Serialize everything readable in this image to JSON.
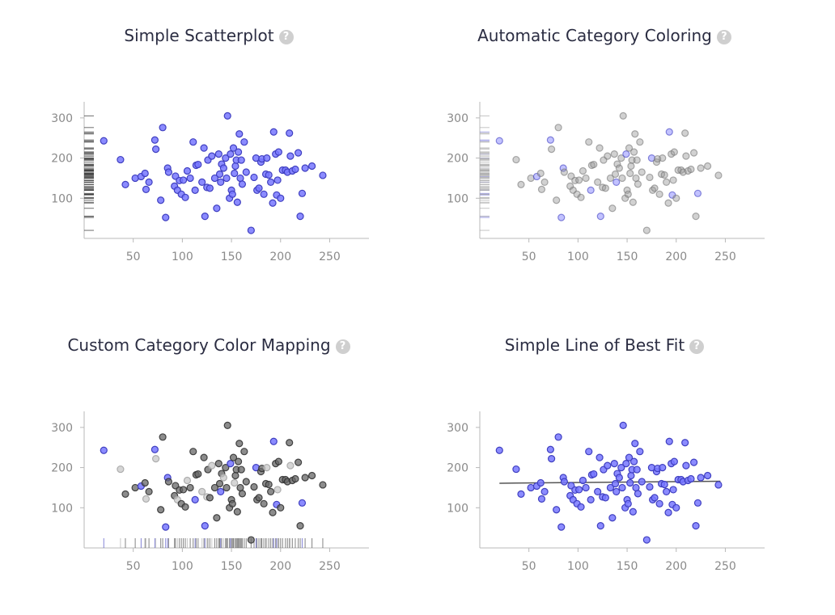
{
  "colors": {
    "blue": "#7777ff",
    "blue_stroke": "#3f3fc0",
    "gray": "#999999",
    "dark": "#666666",
    "black": "#333333",
    "light": "#cccccc",
    "axis": "#b8b8b8",
    "fit_line": "#555555"
  },
  "help_glyph": "?",
  "chart_data": [
    {
      "type": "scatter",
      "title": "Simple Scatterplot",
      "xticks": [
        "50",
        "100",
        "150",
        "200",
        "250"
      ],
      "yticks": [
        "100",
        "200",
        "300"
      ],
      "xlim": [
        0,
        290
      ],
      "ylim": [
        0,
        340
      ],
      "rug": "y",
      "coloring": "single",
      "best_fit": false
    },
    {
      "type": "scatter",
      "title": "Automatic Category Coloring",
      "xticks": [
        "50",
        "100",
        "150",
        "200",
        "250"
      ],
      "yticks": [
        "100",
        "200",
        "300"
      ],
      "xlim": [
        0,
        290
      ],
      "ylim": [
        0,
        340
      ],
      "rug": "y",
      "coloring": "auto",
      "best_fit": false
    },
    {
      "type": "scatter",
      "title": "Custom Category Color Mapping",
      "xticks": [
        "50",
        "100",
        "150",
        "200",
        "250"
      ],
      "yticks": [
        "100",
        "200",
        "300"
      ],
      "xlim": [
        0,
        290
      ],
      "ylim": [
        0,
        340
      ],
      "rug": "x",
      "coloring": "custom",
      "best_fit": false
    },
    {
      "type": "scatter",
      "title": "Simple Line of Best Fit",
      "xticks": [
        "50",
        "100",
        "150",
        "200",
        "250"
      ],
      "yticks": [
        "100",
        "200",
        "300"
      ],
      "xlim": [
        0,
        290
      ],
      "ylim": [
        0,
        340
      ],
      "rug": "none",
      "coloring": "single",
      "best_fit": true,
      "fit_line": {
        "x": [
          20,
          245
        ],
        "y": [
          161,
          166
        ]
      }
    }
  ],
  "points": [
    [
      20,
      243,
      0
    ],
    [
      37,
      196,
      2
    ],
    [
      42,
      134,
      1
    ],
    [
      52,
      150,
      1
    ],
    [
      58,
      154,
      0
    ],
    [
      62,
      162,
      1
    ],
    [
      63,
      122,
      2
    ],
    [
      66,
      140,
      1
    ],
    [
      72,
      245,
      0
    ],
    [
      73,
      222,
      2
    ],
    [
      78,
      95,
      1
    ],
    [
      80,
      276,
      1
    ],
    [
      83,
      52,
      0
    ],
    [
      85,
      175,
      0
    ],
    [
      86,
      165,
      1
    ],
    [
      92,
      130,
      1
    ],
    [
      93,
      155,
      1
    ],
    [
      95,
      120,
      2
    ],
    [
      97,
      144,
      1
    ],
    [
      99,
      110,
      1
    ],
    [
      101,
      145,
      1
    ],
    [
      103,
      102,
      1
    ],
    [
      105,
      168,
      2
    ],
    [
      108,
      150,
      1
    ],
    [
      111,
      240,
      1
    ],
    [
      113,
      120,
      0
    ],
    [
      114,
      182,
      1
    ],
    [
      116,
      184,
      1
    ],
    [
      120,
      140,
      2
    ],
    [
      122,
      225,
      1
    ],
    [
      123,
      55,
      0
    ],
    [
      125,
      127,
      2
    ],
    [
      126,
      195,
      1
    ],
    [
      128,
      125,
      1
    ],
    [
      130,
      205,
      2
    ],
    [
      133,
      150,
      1
    ],
    [
      135,
      75,
      1
    ],
    [
      137,
      210,
      1
    ],
    [
      138,
      160,
      1
    ],
    [
      139,
      140,
      0
    ],
    [
      140,
      185,
      1
    ],
    [
      142,
      175,
      2
    ],
    [
      144,
      200,
      1
    ],
    [
      145,
      150,
      1
    ],
    [
      146,
      305,
      1
    ],
    [
      148,
      100,
      1
    ],
    [
      149,
      210,
      0
    ],
    [
      150,
      120,
      1
    ],
    [
      151,
      110,
      1
    ],
    [
      152,
      225,
      1
    ],
    [
      153,
      162,
      2
    ],
    [
      154,
      180,
      1
    ],
    [
      155,
      195,
      1
    ],
    [
      156,
      90,
      1
    ],
    [
      157,
      215,
      1
    ],
    [
      158,
      260,
      1
    ],
    [
      159,
      150,
      1
    ],
    [
      160,
      195,
      1
    ],
    [
      161,
      135,
      1
    ],
    [
      163,
      240,
      1
    ],
    [
      165,
      165,
      1
    ],
    [
      170,
      20,
      1
    ],
    [
      173,
      152,
      1
    ],
    [
      175,
      200,
      0
    ],
    [
      176,
      120,
      1
    ],
    [
      178,
      125,
      1
    ],
    [
      180,
      190,
      1
    ],
    [
      181,
      198,
      1
    ],
    [
      183,
      110,
      1
    ],
    [
      185,
      160,
      1
    ],
    [
      186,
      200,
      2
    ],
    [
      188,
      158,
      1
    ],
    [
      190,
      140,
      1
    ],
    [
      192,
      88,
      1
    ],
    [
      193,
      265,
      0
    ],
    [
      195,
      210,
      1
    ],
    [
      196,
      108,
      0
    ],
    [
      197,
      145,
      2
    ],
    [
      198,
      215,
      1
    ],
    [
      200,
      100,
      1
    ],
    [
      202,
      170,
      1
    ],
    [
      205,
      170,
      1
    ],
    [
      207,
      165,
      1
    ],
    [
      209,
      262,
      1
    ],
    [
      210,
      205,
      2
    ],
    [
      212,
      168,
      1
    ],
    [
      215,
      172,
      1
    ],
    [
      218,
      213,
      1
    ],
    [
      220,
      55,
      1
    ],
    [
      222,
      112,
      0
    ],
    [
      225,
      175,
      1
    ],
    [
      232,
      180,
      1
    ],
    [
      243,
      157,
      1
    ]
  ],
  "rug_ticks": [
    20,
    37,
    42,
    52,
    58,
    62,
    63,
    66,
    72,
    73,
    78,
    80,
    83,
    85,
    86,
    92,
    93,
    95,
    97,
    99,
    101,
    103,
    105,
    108,
    111,
    113,
    114,
    116,
    120,
    122,
    123,
    125,
    126,
    128,
    130,
    133,
    135,
    137,
    138,
    139,
    140,
    142,
    144,
    145,
    146,
    148,
    149,
    150,
    151,
    152,
    153,
    154,
    155,
    156,
    157,
    158,
    159,
    160,
    161,
    163,
    165,
    170,
    173,
    175,
    176,
    178,
    180,
    181,
    183,
    185,
    186,
    188,
    190,
    192,
    193,
    195,
    196,
    197,
    198,
    200,
    202,
    205,
    207,
    209,
    210,
    212,
    215,
    218,
    220,
    222,
    225,
    232,
    243
  ]
}
